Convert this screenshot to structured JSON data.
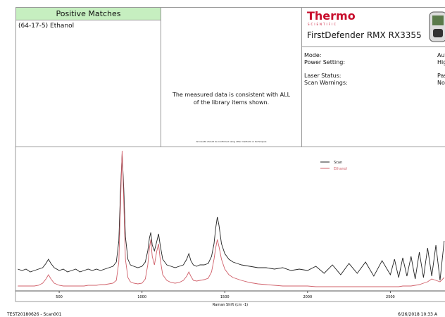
{
  "matches": {
    "title": "Positive Matches",
    "items": [
      "(64-17-5) Ethanol"
    ]
  },
  "result": {
    "message": "The measured data is consistent with ALL of the library items shown.",
    "disclaimer": "All results should be confirmed using other methods or techniques"
  },
  "instrument": {
    "brand": "Thermo",
    "brand_sub": "SCIENTIFIC",
    "model": "FirstDefender RMX RX3355",
    "fields": [
      {
        "label": "Mode:",
        "value": "Auto"
      },
      {
        "label": "Power Setting:",
        "value": "High"
      },
      {
        "label": "Laser Status:",
        "value": "Pass"
      },
      {
        "label": "Scan Warnings:",
        "value": "None"
      }
    ]
  },
  "chart_data": {
    "type": "line",
    "x_label": "Raman Shift (cm -1)",
    "x": [
      250,
      275,
      300,
      325,
      350,
      375,
      400,
      420,
      435,
      450,
      470,
      500,
      525,
      550,
      575,
      600,
      625,
      650,
      675,
      700,
      725,
      750,
      775,
      800,
      825,
      845,
      860,
      870,
      880,
      890,
      900,
      915,
      930,
      950,
      975,
      1000,
      1020,
      1035,
      1045,
      1053,
      1062,
      1075,
      1088,
      1100,
      1110,
      1125,
      1150,
      1175,
      1200,
      1225,
      1250,
      1270,
      1283,
      1295,
      1310,
      1330,
      1350,
      1375,
      1400,
      1420,
      1435,
      1445,
      1455,
      1465,
      1480,
      1500,
      1525,
      1550,
      1575,
      1600,
      1650,
      1700,
      1750,
      1800,
      1850,
      1900,
      1950,
      2000,
      2050,
      2100,
      2150,
      2200,
      2250,
      2300,
      2350,
      2400,
      2450,
      2500,
      2525,
      2550,
      2575,
      2600,
      2625,
      2650,
      2675,
      2700,
      2725,
      2750,
      2775,
      2800,
      2825
    ],
    "series": [
      {
        "name": "Scan",
        "color": "#222222",
        "values": [
          15,
          14,
          15,
          13,
          14,
          15,
          16,
          19,
          22,
          19,
          16,
          14,
          15,
          13,
          14,
          15,
          13,
          14,
          15,
          14,
          15,
          14,
          15,
          16,
          17,
          20,
          35,
          70,
          97,
          72,
          38,
          22,
          18,
          17,
          16,
          17,
          20,
          28,
          37,
          41,
          32,
          28,
          34,
          40,
          32,
          22,
          18,
          17,
          16,
          17,
          18,
          22,
          26,
          21,
          18,
          17,
          18,
          18,
          19,
          24,
          33,
          44,
          52,
          46,
          33,
          26,
          22,
          20,
          19,
          18,
          17,
          16,
          16,
          15,
          16,
          14,
          15,
          14,
          17,
          12,
          18,
          11,
          19,
          12,
          20,
          10,
          21,
          11,
          22,
          9,
          23,
          10,
          24,
          8,
          27,
          9,
          30,
          10,
          32,
          7,
          35
        ]
      },
      {
        "name": "Ethanol",
        "color": "#d0606a",
        "values": [
          3,
          3,
          3,
          3,
          3,
          3.5,
          5,
          8,
          11,
          8,
          5,
          3.5,
          3,
          3,
          3,
          3,
          3,
          3,
          3.5,
          3.5,
          3.5,
          4,
          4,
          4.5,
          5,
          7,
          20,
          60,
          99,
          62,
          22,
          9,
          6,
          5,
          4.5,
          5,
          8,
          18,
          30,
          36,
          24,
          18,
          27,
          33,
          22,
          11,
          7,
          5.5,
          5,
          5.5,
          7,
          10,
          13,
          10,
          7,
          6.5,
          7,
          7.5,
          8.5,
          13,
          22,
          30,
          36,
          31,
          22,
          15,
          11,
          9,
          8,
          7,
          5.5,
          4.5,
          4,
          3.5,
          3,
          3,
          3,
          3,
          2.5,
          2.5,
          2.5,
          2.5,
          2.5,
          2.5,
          2.5,
          2.5,
          2.5,
          2.5,
          2.5,
          2.5,
          3,
          3,
          3,
          3.5,
          4,
          5,
          6,
          8,
          7,
          6,
          9
        ]
      }
    ],
    "xlim": [
      236,
      2830
    ],
    "xticks": [
      500,
      1000,
      1500,
      2000,
      2500
    ],
    "ylim": [
      0,
      100
    ],
    "grid": false
  },
  "footer": {
    "left": "TEST20180626 - Scan001",
    "right": "6/26/2018 10:33 A"
  }
}
